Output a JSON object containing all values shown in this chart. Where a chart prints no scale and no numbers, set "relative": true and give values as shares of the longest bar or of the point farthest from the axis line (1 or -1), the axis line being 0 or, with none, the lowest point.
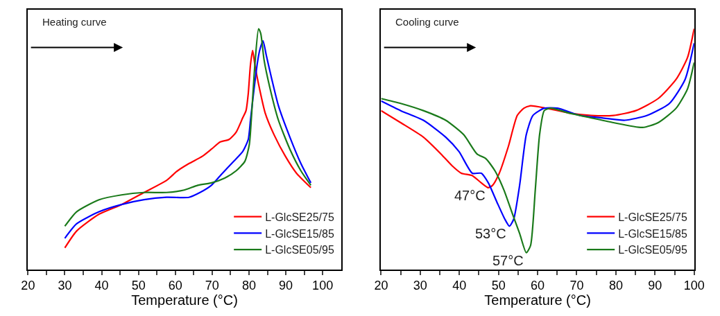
{
  "chart_data": [
    {
      "type": "line",
      "relative": true,
      "xlabel": "Temperature (°C)",
      "xlim": [
        20,
        105
      ],
      "xticks": [
        20,
        30,
        40,
        50,
        60,
        70,
        80,
        90,
        100,
        {
          "value": 25,
          "label": null
        },
        {
          "value": 35,
          "label": null
        },
        {
          "value": 45,
          "label": null
        },
        {
          "value": 55,
          "label": null
        },
        {
          "value": 65,
          "label": null
        },
        {
          "value": 75,
          "label": null
        },
        {
          "value": 85,
          "label": null
        },
        {
          "value": 95,
          "label": null
        }
      ],
      "tick_labels": "x",
      "legend": "bottom right",
      "line_style": "solid",
      "marker": "none",
      "annotations": [
        "Heating curve"
      ],
      "series": [
        {
          "name": "L-GlcSE25/75",
          "color": "#ff0000",
          "x": [
            30.0,
            33.2,
            39.3,
            45.4,
            51.5,
            57.6,
            60.6,
            63.7,
            67.3,
            69.8,
            72.2,
            74.6,
            76.5,
            78.3,
            79.2,
            79.8,
            80.4,
            81.0,
            81.6,
            82.6,
            84.4,
            86.8,
            89.9,
            92.9,
            96.8
          ],
          "values": [
            0.09,
            0.16,
            0.23,
            0.27,
            0.32,
            0.37,
            0.41,
            0.44,
            0.47,
            0.5,
            0.53,
            0.54,
            0.57,
            0.63,
            0.66,
            0.73,
            0.85,
            0.91,
            0.85,
            0.77,
            0.65,
            0.56,
            0.47,
            0.4,
            0.34
          ]
        },
        {
          "name": "L-GlcSE15/85",
          "color": "#0000ff",
          "x": [
            30.0,
            33.2,
            39.3,
            45.4,
            51.5,
            57.6,
            63.7,
            66.7,
            69.8,
            72.8,
            75.9,
            78.3,
            79.8,
            80.4,
            81.3,
            82.3,
            82.9,
            83.8,
            84.7,
            86.2,
            88.0,
            91.1,
            94.1,
            96.8
          ],
          "values": [
            0.13,
            0.19,
            0.24,
            0.27,
            0.29,
            0.3,
            0.3,
            0.32,
            0.35,
            0.4,
            0.45,
            0.49,
            0.54,
            0.62,
            0.74,
            0.86,
            0.91,
            0.95,
            0.89,
            0.79,
            0.68,
            0.55,
            0.44,
            0.36
          ]
        },
        {
          "name": "L-GlcSE05/95",
          "color": "#1a7a1a",
          "x": [
            30.0,
            33.2,
            39.3,
            45.4,
            51.5,
            57.6,
            62.4,
            66.1,
            69.8,
            73.4,
            76.5,
            78.9,
            80.1,
            80.7,
            81.6,
            82.6,
            83.2,
            84.1,
            85.6,
            88.0,
            91.1,
            94.1,
            96.8
          ],
          "values": [
            0.18,
            0.24,
            0.29,
            0.31,
            0.32,
            0.32,
            0.33,
            0.35,
            0.36,
            0.38,
            0.41,
            0.45,
            0.52,
            0.64,
            0.85,
            1.0,
            0.98,
            0.87,
            0.76,
            0.62,
            0.5,
            0.41,
            0.35
          ]
        }
      ]
    },
    {
      "type": "line",
      "relative": true,
      "xlabel": "Temperature (°C)",
      "xlim": [
        20,
        100
      ],
      "xticks": [
        20,
        30,
        40,
        50,
        60,
        70,
        80,
        90,
        100,
        {
          "value": 25,
          "label": null
        },
        {
          "value": 35,
          "label": null
        },
        {
          "value": 45,
          "label": null
        },
        {
          "value": 55,
          "label": null
        },
        {
          "value": 65,
          "label": null
        },
        {
          "value": 75,
          "label": null
        },
        {
          "value": 85,
          "label": null
        },
        {
          "value": 95,
          "label": null
        }
      ],
      "tick_labels": "x",
      "legend": "bottom right",
      "line_style": "solid",
      "marker": "none",
      "annotations": [
        "Cooling curve",
        {
          "text": "47°C",
          "x": 47.4,
          "y": 0.34
        },
        {
          "text": "53°C",
          "x": 52.8,
          "y": 0.18
        },
        {
          "text": "57°C",
          "x": 57.1,
          "y": 0.07
        }
      ],
      "series": [
        {
          "name": "L-GlcSE25/75",
          "color": "#ff0000",
          "x": [
            20.0,
            25.0,
            30.8,
            35.3,
            38.2,
            40.5,
            43.3,
            45.6,
            47.4,
            48.5,
            50.2,
            52.5,
            54.8,
            56.5,
            58.2,
            62.2,
            68.0,
            73.7,
            79.4,
            85.1,
            90.8,
            95.4,
            98.3,
            100
          ],
          "values": [
            0.66,
            0.61,
            0.55,
            0.48,
            0.43,
            0.4,
            0.39,
            0.36,
            0.34,
            0.35,
            0.4,
            0.51,
            0.64,
            0.67,
            0.68,
            0.67,
            0.65,
            0.64,
            0.64,
            0.66,
            0.71,
            0.79,
            0.88,
            1.0
          ]
        },
        {
          "name": "L-GlcSE15/85",
          "color": "#0000ff",
          "x": [
            20.0,
            25.0,
            30.8,
            36.5,
            39.9,
            43.3,
            45.6,
            47.4,
            49.6,
            51.6,
            52.8,
            53.9,
            55.4,
            57.1,
            58.8,
            61.7,
            65.1,
            70.8,
            76.5,
            82.3,
            88.0,
            93.7,
            97.7,
            100
          ],
          "values": [
            0.7,
            0.66,
            0.62,
            0.55,
            0.49,
            0.4,
            0.4,
            0.36,
            0.28,
            0.21,
            0.18,
            0.21,
            0.35,
            0.56,
            0.64,
            0.67,
            0.67,
            0.64,
            0.63,
            0.62,
            0.64,
            0.69,
            0.79,
            0.94
          ]
        },
        {
          "name": "L-GlcSE05/95",
          "color": "#1a7a1a",
          "x": [
            20.0,
            25.0,
            30.8,
            36.5,
            41.1,
            44.5,
            46.8,
            49.1,
            51.4,
            53.6,
            55.4,
            57.1,
            58.2,
            59.4,
            60.5,
            61.7,
            63.4,
            68.0,
            73.7,
            79.4,
            86.8,
            90.8,
            95.4,
            98.3,
            100
          ],
          "values": [
            0.71,
            0.69,
            0.66,
            0.62,
            0.56,
            0.48,
            0.46,
            0.41,
            0.33,
            0.23,
            0.15,
            0.07,
            0.1,
            0.33,
            0.56,
            0.66,
            0.67,
            0.65,
            0.63,
            0.61,
            0.59,
            0.61,
            0.67,
            0.75,
            0.86
          ]
        }
      ]
    }
  ]
}
